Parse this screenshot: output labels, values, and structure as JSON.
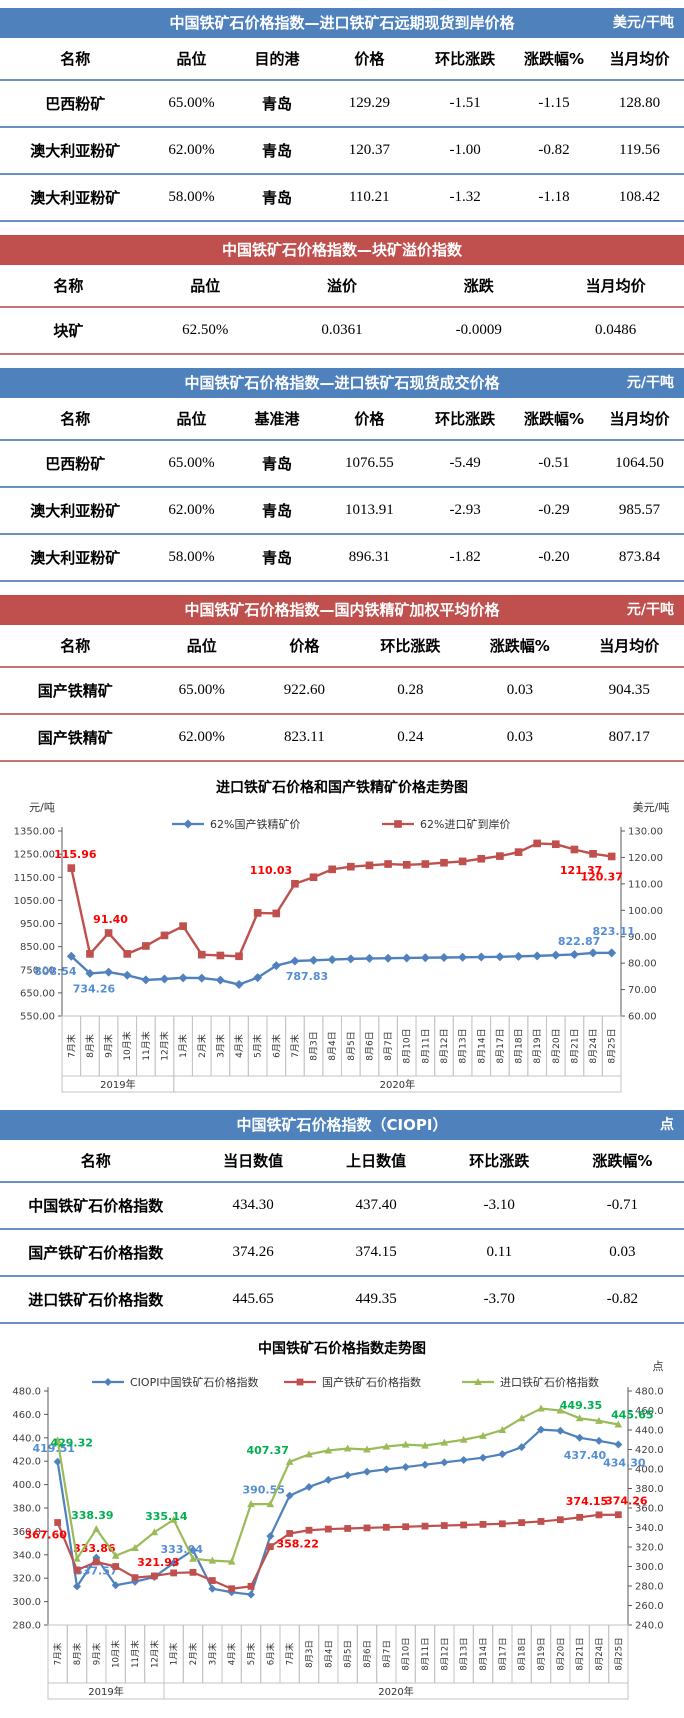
{
  "tables": [
    {
      "title": "中国铁矿石价格指数—进口铁矿石远期现货到岸价格",
      "unit": "美元/干吨",
      "theme": "blue",
      "headers": [
        "名称",
        "品位",
        "目的港",
        "价格",
        "环比涨跌",
        "涨跌幅%",
        "当月均价"
      ],
      "rows": [
        [
          "巴西粉矿",
          "65.00%",
          "青岛",
          "129.29",
          "-1.51",
          "-1.15",
          "128.80"
        ],
        [
          "澳大利亚粉矿",
          "62.00%",
          "青岛",
          "120.37",
          "-1.00",
          "-0.82",
          "119.56"
        ],
        [
          "澳大利亚粉矿",
          "58.00%",
          "青岛",
          "110.21",
          "-1.32",
          "-1.18",
          "108.42"
        ]
      ]
    },
    {
      "title": "中国铁矿石价格指数—块矿溢价指数",
      "unit": "",
      "theme": "red",
      "headers": [
        "名称",
        "品位",
        "溢价",
        "涨跌",
        "当月均价"
      ],
      "rows": [
        [
          "块矿",
          "62.50%",
          "0.0361",
          "-0.0009",
          "0.0486"
        ]
      ]
    },
    {
      "title": "中国铁矿石价格指数—进口铁矿石现货成交价格",
      "unit": "元/干吨",
      "theme": "blue",
      "headers": [
        "名称",
        "品位",
        "基准港",
        "价格",
        "环比涨跌",
        "涨跌幅%",
        "当月均价"
      ],
      "rows": [
        [
          "巴西粉矿",
          "65.00%",
          "青岛",
          "1076.55",
          "-5.49",
          "-0.51",
          "1064.50"
        ],
        [
          "澳大利亚粉矿",
          "62.00%",
          "青岛",
          "1013.91",
          "-2.93",
          "-0.29",
          "985.57"
        ],
        [
          "澳大利亚粉矿",
          "58.00%",
          "青岛",
          "896.31",
          "-1.82",
          "-0.20",
          "873.84"
        ]
      ]
    },
    {
      "title": "中国铁矿石价格指数—国内铁精矿加权平均价格",
      "unit": "元/干吨",
      "theme": "red",
      "headers": [
        "名称",
        "品位",
        "价格",
        "环比涨跌",
        "涨跌幅%",
        "当月均价"
      ],
      "rows": [
        [
          "国产铁精矿",
          "65.00%",
          "922.60",
          "0.28",
          "0.03",
          "904.35"
        ],
        [
          "国产铁精矿",
          "62.00%",
          "823.11",
          "0.24",
          "0.03",
          "807.17"
        ]
      ]
    },
    {
      "title": "中国铁矿石价格指数（CIOPI）",
      "unit": "点",
      "theme": "blue",
      "headers": [
        "名称",
        "当日数值",
        "上日数值",
        "环比涨跌",
        "涨跌幅%"
      ],
      "rows": [
        [
          "中国铁矿石价格指数",
          "434.30",
          "437.40",
          "-3.10",
          "-0.71"
        ],
        [
          "国产铁矿石价格指数",
          "374.26",
          "374.15",
          "0.11",
          "0.03"
        ],
        [
          "进口铁矿石价格指数",
          "445.65",
          "449.35",
          "-3.70",
          "-0.82"
        ]
      ]
    }
  ],
  "chart_data": [
    {
      "type": "line",
      "title": "进口铁矿石价格和国产铁精矿价格走势图",
      "legend_position": "top",
      "grid": false,
      "left_axis": {
        "label": "元/吨",
        "min": 550,
        "max": 1350,
        "step": 100,
        "decimals": 2
      },
      "right_axis": {
        "label": "美元/吨",
        "min": 60,
        "max": 130,
        "step": 10,
        "decimals": 2
      },
      "categories": [
        "7月末",
        "8月末",
        "9月末",
        "10月末",
        "11月末",
        "12月末",
        "1月末",
        "2月末",
        "3月末",
        "4月末",
        "5月末",
        "6月末",
        "7月末",
        "8月3日",
        "8月4日",
        "8月5日",
        "8月6日",
        "8月7日",
        "8月10日",
        "8月11日",
        "8月12日",
        "8月13日",
        "8月14日",
        "8月17日",
        "8月18日",
        "8月19日",
        "8月20日",
        "8月21日",
        "8月24日",
        "8月25日"
      ],
      "year_groups": [
        {
          "label": "2019年",
          "count": 6
        },
        {
          "label": "2020年",
          "count": 24
        }
      ],
      "series": [
        {
          "name": "62%国产铁精矿价",
          "color": "#4f81bd",
          "marker": "diamond",
          "axis": "left",
          "label_color": "#558ed5",
          "values": [
            808.54,
            734.26,
            740,
            726,
            706,
            710,
            715,
            714,
            705,
            686,
            716,
            768,
            787.83,
            791,
            794,
            797,
            799,
            800,
            801,
            802,
            803,
            804,
            805,
            806,
            808,
            810,
            813,
            816,
            822.87,
            823.11
          ],
          "point_labels": [
            {
              "i": 0,
              "text": "808.54",
              "dx": -16,
              "dy": 19
            },
            {
              "i": 1,
              "text": "734.26",
              "dx": 4,
              "dy": 19
            },
            {
              "i": 12,
              "text": "787.83",
              "dx": 12,
              "dy": 19
            },
            {
              "i": 28,
              "text": "822.87",
              "dx": -14,
              "dy": -8
            },
            {
              "i": 29,
              "text": "823.11",
              "dx": 2,
              "dy": -18
            }
          ]
        },
        {
          "name": "62%进口矿到岸价",
          "color": "#c0504d",
          "marker": "square",
          "axis": "right",
          "label_color": "#ff0000",
          "values": [
            115.96,
            83.5,
            91.4,
            83.5,
            86.5,
            90.5,
            94,
            83.2,
            82.9,
            82.6,
            99,
            98.8,
            110.03,
            112.5,
            115.5,
            116.5,
            117,
            117.5,
            117.2,
            117.5,
            118,
            118.5,
            119.5,
            120.5,
            122,
            125.3,
            125,
            123,
            121.37,
            120.37
          ],
          "point_labels": [
            {
              "i": 0,
              "text": "115.96",
              "dx": 4,
              "dy": -10
            },
            {
              "i": 2,
              "text": "91.40",
              "dx": 2,
              "dy": -10
            },
            {
              "i": 12,
              "text": "110.03",
              "dx": -24,
              "dy": -10
            },
            {
              "i": 28,
              "text": "121.37",
              "dx": -12,
              "dy": 20
            },
            {
              "i": 29,
              "text": "120.37",
              "dx": -10,
              "dy": 24
            }
          ]
        }
      ]
    },
    {
      "type": "line",
      "title": "中国铁矿石价格指数走势图",
      "legend_position": "top",
      "grid": false,
      "left_axis": {
        "label": "",
        "min": 280,
        "max": 480,
        "step": 20,
        "decimals": 1
      },
      "right_axis": {
        "label": "点",
        "min": 240,
        "max": 480,
        "step": 20,
        "decimals": 1
      },
      "categories": [
        "7月末",
        "8月末",
        "9月末",
        "10月末",
        "11月末",
        "12月末",
        "1月末",
        "2月末",
        "3月末",
        "4月末",
        "5月末",
        "6月末",
        "7月末",
        "8月3日",
        "8月4日",
        "8月5日",
        "8月6日",
        "8月7日",
        "8月10日",
        "8月11日",
        "8月12日",
        "8月13日",
        "8月14日",
        "8月17日",
        "8月18日",
        "8月19日",
        "8月20日",
        "8月21日",
        "8月24日",
        "8月25日"
      ],
      "year_groups": [
        {
          "label": "2019年",
          "count": 6
        },
        {
          "label": "2020年",
          "count": 24
        }
      ],
      "series": [
        {
          "name": "CIOPI中国铁矿石价格指数",
          "color": "#4f81bd",
          "marker": "diamond",
          "axis": "left",
          "label_color": "#558ed5",
          "values": [
            419.51,
            313,
            337.57,
            314,
            317,
            321,
            333.04,
            344,
            311,
            308,
            306,
            356,
            390.55,
            398,
            404,
            408,
            411,
            413,
            415,
            417,
            419,
            421,
            423,
            426,
            432,
            447,
            446,
            440,
            437.4,
            434.3
          ],
          "point_labels": [
            {
              "i": 0,
              "text": "419.51",
              "dx": -4,
              "dy": -10
            },
            {
              "i": 2,
              "text": "337.57",
              "dx": 0,
              "dy": 17
            },
            {
              "i": 6,
              "text": "333.04",
              "dx": 8,
              "dy": -10
            },
            {
              "i": 12,
              "text": "390.55",
              "dx": -26,
              "dy": -2
            },
            {
              "i": 28,
              "text": "437.40",
              "dx": -14,
              "dy": 18
            },
            {
              "i": 29,
              "text": "434.30",
              "dx": 6,
              "dy": 22
            }
          ]
        },
        {
          "name": "国产铁矿石价格指数",
          "color": "#c0504d",
          "marker": "square",
          "axis": "left",
          "label_color": "#ff0000",
          "values": [
            367.6,
            327,
            333.86,
            330,
            320.5,
            321.93,
            324.5,
            325,
            318,
            311,
            313,
            347,
            358.22,
            361,
            362,
            362.5,
            363,
            363.5,
            364,
            364.5,
            365,
            365.5,
            366,
            366.5,
            367.5,
            368.5,
            370,
            372,
            374.15,
            374.26
          ],
          "point_labels": [
            {
              "i": 0,
              "text": "367.60",
              "dx": -12,
              "dy": 16
            },
            {
              "i": 2,
              "text": "333.86",
              "dx": -2,
              "dy": -10
            },
            {
              "i": 5,
              "text": "321.93",
              "dx": 4,
              "dy": -10
            },
            {
              "i": 12,
              "text": "358.22",
              "dx": 8,
              "dy": 14
            },
            {
              "i": 28,
              "text": "374.15",
              "dx": -12,
              "dy": -10
            },
            {
              "i": 29,
              "text": "374.26",
              "dx": 8,
              "dy": -10
            }
          ]
        },
        {
          "name": "进口铁矿石价格指数",
          "color": "#9bbb59",
          "marker": "triangle",
          "axis": "right",
          "label_color": "#00b050",
          "values": [
            429.32,
            308,
            338.39,
            311,
            319,
            335.14,
            348,
            308,
            306,
            305,
            364,
            364,
            407.37,
            415,
            419,
            421,
            420,
            423,
            425,
            424,
            427,
            430,
            434,
            440,
            452,
            462,
            460,
            452,
            449.35,
            445.65
          ],
          "point_labels": [
            {
              "i": 0,
              "text": "429.32",
              "dx": 14,
              "dy": 6
            },
            {
              "i": 2,
              "text": "338.39",
              "dx": -4,
              "dy": -10
            },
            {
              "i": 5,
              "text": "335.14",
              "dx": 12,
              "dy": -12
            },
            {
              "i": 12,
              "text": "407.37",
              "dx": -22,
              "dy": -8
            },
            {
              "i": 28,
              "text": "449.35",
              "dx": -18,
              "dy": -12
            },
            {
              "i": 29,
              "text": "445.65",
              "dx": 14,
              "dy": -6
            }
          ]
        }
      ]
    }
  ]
}
